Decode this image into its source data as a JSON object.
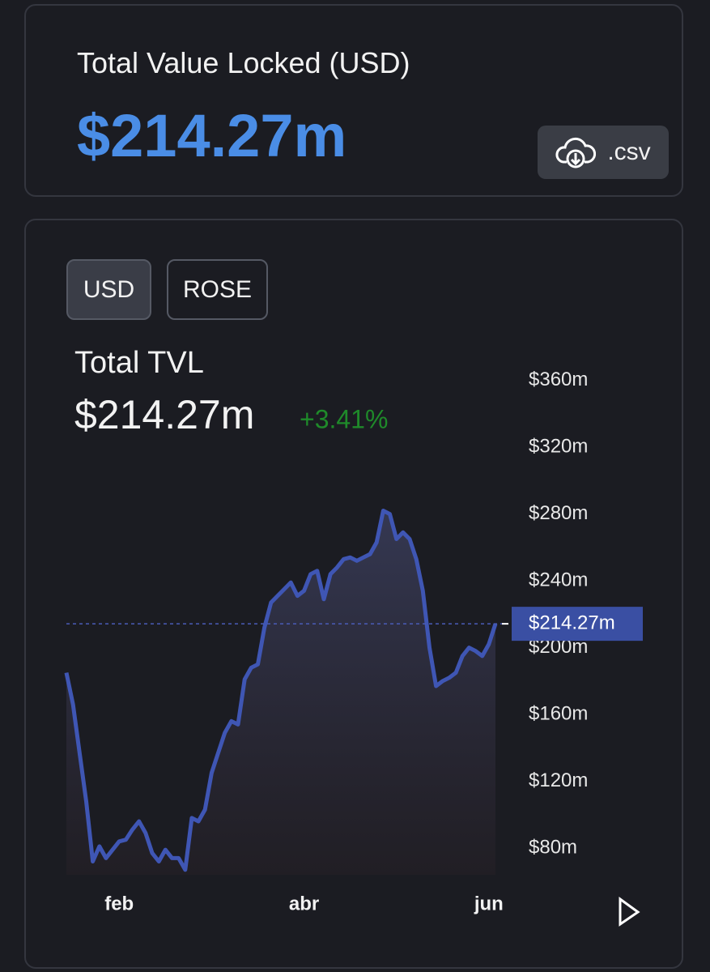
{
  "header": {
    "title": "Total Value Locked (USD)",
    "value": "$214.27m",
    "download": ".csv"
  },
  "toggle": [
    "USD",
    "ROSE"
  ],
  "chart_data": {
    "type": "line",
    "title": "Total TVL",
    "current_label": "$214.27m",
    "change": "+3.41%",
    "categories": [
      null,
      null,
      null,
      null,
      null,
      null,
      null,
      null,
      "feb",
      null,
      null,
      null,
      null,
      null,
      null,
      null,
      null,
      null,
      null,
      null,
      null,
      null,
      null,
      null,
      null,
      null,
      null,
      null,
      null,
      null,
      null,
      null,
      null,
      null,
      null,
      null,
      "abr",
      null,
      null,
      null,
      null,
      null,
      null,
      null,
      null,
      null,
      null,
      null,
      null,
      null,
      null,
      null,
      null,
      null,
      null,
      null,
      null,
      null,
      null,
      null,
      null,
      null,
      null,
      null,
      "jun",
      null
    ],
    "values": [
      185,
      166,
      137,
      108,
      72,
      81,
      74,
      79,
      84,
      85,
      91,
      96,
      89,
      77,
      72,
      79,
      74,
      74,
      67,
      98,
      96,
      103,
      125,
      137,
      149,
      156,
      154,
      181,
      188,
      190,
      212,
      227,
      231,
      235,
      239,
      231,
      234,
      244,
      246,
      229,
      244,
      248,
      253,
      254,
      252,
      254,
      256,
      263,
      282,
      280,
      265,
      269,
      265,
      253,
      234,
      200,
      177,
      180,
      182,
      185,
      195,
      200,
      198,
      195,
      202,
      214.27
    ],
    "color": "#3f56b4",
    "ylim": [
      64,
      370
    ],
    "yticks": [
      {
        "value": 80,
        "label": "$80m"
      },
      {
        "value": 120,
        "label": "$120m"
      },
      {
        "value": 160,
        "label": "$160m"
      },
      {
        "value": 200,
        "label": "$200m"
      },
      {
        "value": 240,
        "label": "$240m"
      },
      {
        "value": 280,
        "label": "$280m"
      },
      {
        "value": 320,
        "label": "$320m"
      },
      {
        "value": 360,
        "label": "$360m"
      }
    ],
    "last_value": 214.27,
    "last_label": "$214.27m"
  }
}
